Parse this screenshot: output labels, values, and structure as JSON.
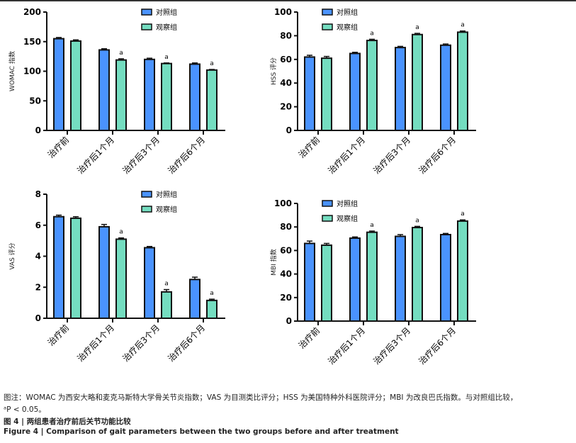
{
  "colors": {
    "control": "#4a93ff",
    "observe": "#74ddc0"
  },
  "chart_data": [
    {
      "type": "bar",
      "ylabel": "WOMAC 指数",
      "ylim": [
        0,
        200
      ],
      "ticks": [
        0,
        50,
        100,
        150,
        200
      ],
      "categories": [
        "治疗前",
        "治疗后1个月",
        "治疗后3个月",
        "治疗后6个月"
      ],
      "series": [
        {
          "name": "对照组",
          "values": [
            155,
            136,
            120,
            112
          ],
          "errors": [
            2,
            2,
            2,
            2
          ]
        },
        {
          "name": "观察组",
          "values": [
            151,
            119,
            113,
            102
          ],
          "errors": [
            2,
            2,
            1,
            1
          ]
        }
      ],
      "annotations": [
        "",
        "a",
        "a",
        "a"
      ],
      "legend": "top-center"
    },
    {
      "type": "bar",
      "ylabel": "HSS 评分",
      "ylim": [
        0,
        100
      ],
      "ticks": [
        0,
        20,
        40,
        60,
        80,
        100
      ],
      "categories": [
        "治疗前",
        "治疗后1个月",
        "治疗后3个月",
        "治疗后6个月"
      ],
      "series": [
        {
          "name": "对照组",
          "values": [
            62,
            65,
            70,
            72
          ],
          "errors": [
            1.5,
            1,
            1,
            1
          ]
        },
        {
          "name": "观察组",
          "values": [
            61,
            76,
            81,
            83
          ],
          "errors": [
            1.5,
            1,
            1,
            1
          ]
        }
      ],
      "annotations": [
        "",
        "a",
        "a",
        "a"
      ],
      "legend": "top-left"
    },
    {
      "type": "bar",
      "ylabel": "VAS 评分",
      "ylim": [
        0,
        8
      ],
      "ticks": [
        0,
        2,
        4,
        6,
        8
      ],
      "categories": [
        "治疗前",
        "治疗后1个月",
        "治疗后3个月",
        "治疗后6个月"
      ],
      "series": [
        {
          "name": "对照组",
          "values": [
            6.55,
            5.9,
            4.55,
            2.5
          ],
          "errors": [
            0.1,
            0.15,
            0.08,
            0.15
          ]
        },
        {
          "name": "观察组",
          "values": [
            6.45,
            5.1,
            1.7,
            1.15
          ],
          "errors": [
            0.1,
            0.08,
            0.15,
            0.08
          ]
        }
      ],
      "annotations": [
        "",
        "a",
        "a",
        "a"
      ],
      "legend": "top-center"
    },
    {
      "type": "bar",
      "ylabel": "MBI 指数",
      "ylim": [
        0,
        100
      ],
      "ticks": [
        0,
        20,
        40,
        60,
        80,
        100
      ],
      "categories": [
        "治疗前",
        "治疗后1个月",
        "治疗后3个月",
        "治疗后6个月"
      ],
      "series": [
        {
          "name": "对照组",
          "values": [
            66,
            70.5,
            72,
            73.5
          ],
          "errors": [
            2,
            1,
            1.5,
            1
          ]
        },
        {
          "name": "观察组",
          "values": [
            64.5,
            75.5,
            79.5,
            85
          ],
          "errors": [
            1.5,
            1,
            1,
            1
          ]
        }
      ],
      "annotations": [
        "",
        "a",
        "a",
        "a"
      ],
      "legend": "top-left"
    }
  ],
  "caption": {
    "note1": "图注：WOMAC 为西安大略和麦克马斯特大学骨关节炎指数；VAS 为目测类比评分；HSS 为美国特种外科医院评分；MBI 为改良巴氏指数。与对照组比较，",
    "note2": "ᵃP < 0.05。",
    "title_cn": "图 4  |  两组患者治疗前后关节功能比较",
    "title_en": "Figure 4  |  Comparison of gait parameters between the two groups before and after treatment"
  }
}
